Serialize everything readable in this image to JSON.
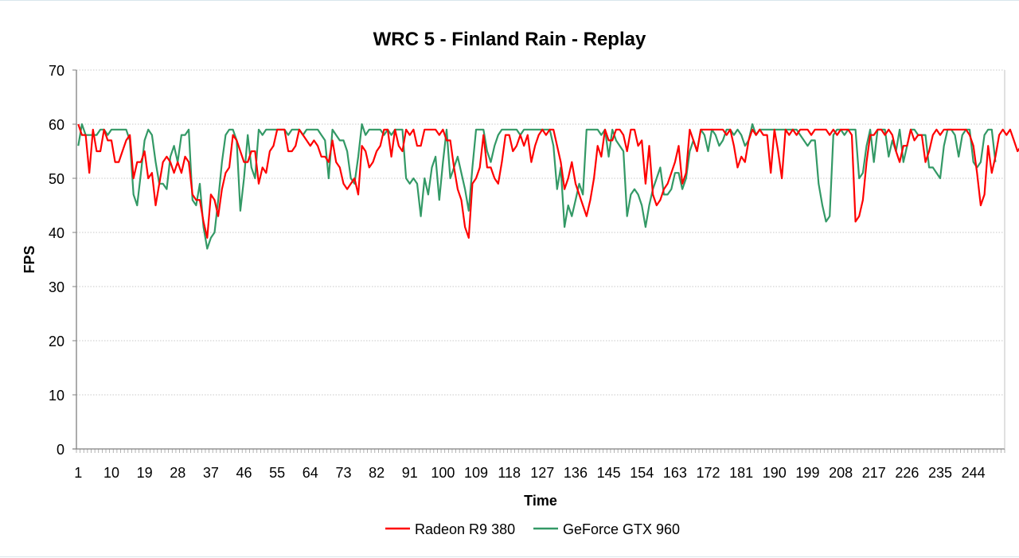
{
  "chart_data": {
    "type": "line",
    "title": "WRC 5 - Finland Rain - Replay",
    "xlabel": "Time",
    "ylabel": "FPS",
    "ylim": [
      0,
      70
    ],
    "yticks": [
      0,
      10,
      20,
      30,
      40,
      50,
      60,
      70
    ],
    "xtick_labels": [
      "1",
      "10",
      "19",
      "28",
      "37",
      "46",
      "55",
      "64",
      "73",
      "82",
      "91",
      "100",
      "109",
      "118",
      "127",
      "136",
      "145",
      "154",
      "163",
      "172",
      "181",
      "190",
      "199",
      "208",
      "217",
      "226",
      "235",
      "244"
    ],
    "x_count": 252,
    "grid": "horizontal-dotted",
    "legend": "bottom",
    "series": [
      {
        "name": "Radeon R9 380",
        "color": "#ff0000",
        "values": [
          60,
          58,
          58,
          51,
          59,
          55,
          55,
          59,
          57,
          57,
          53,
          53,
          55,
          57,
          58,
          50,
          53,
          53,
          55,
          50,
          51,
          45,
          49,
          53,
          54,
          53,
          51,
          53,
          51,
          54,
          53,
          47,
          46,
          46,
          42,
          39,
          47,
          46,
          43,
          48,
          51,
          52,
          58,
          57,
          55,
          53,
          53,
          55,
          55,
          49,
          52,
          51,
          55,
          56,
          59,
          59,
          59,
          55,
          55,
          56,
          59,
          58,
          57,
          56,
          57,
          56,
          54,
          54,
          53,
          57,
          53,
          52,
          49,
          48,
          49,
          50,
          47,
          56,
          55,
          52,
          53,
          55,
          56,
          59,
          59,
          54,
          59,
          56,
          55,
          59,
          58,
          59,
          56,
          56,
          59,
          59,
          59,
          59,
          58,
          59,
          57,
          57,
          52,
          48,
          46,
          41,
          39,
          49,
          50,
          52,
          58,
          52,
          52,
          50,
          49,
          53,
          58,
          58,
          55,
          56,
          58,
          56,
          58,
          53,
          56,
          58,
          59,
          58,
          59,
          59,
          56,
          53,
          48,
          50,
          53,
          49,
          47,
          45,
          43,
          46,
          50,
          56,
          54,
          59,
          57,
          57,
          59,
          59,
          58,
          55,
          59,
          59,
          56,
          57,
          49,
          56,
          47,
          45,
          46,
          48,
          49,
          51,
          53,
          56,
          49,
          51,
          59,
          57,
          55,
          59,
          59,
          59,
          59,
          59,
          59,
          59,
          58,
          59,
          56,
          52,
          54,
          53,
          57,
          59,
          58,
          59,
          58,
          58,
          51,
          59,
          55,
          50,
          59,
          58,
          59,
          58,
          59,
          59,
          59,
          58,
          59,
          59,
          59,
          59,
          58,
          59,
          58,
          59,
          59,
          59,
          58,
          42,
          43,
          46,
          53,
          58,
          58,
          59,
          59,
          58,
          59,
          58,
          55,
          53,
          56,
          56,
          59,
          57,
          58,
          58,
          53,
          55,
          58,
          59,
          58,
          59,
          59,
          59,
          59,
          59,
          59,
          59,
          58,
          56,
          51,
          45,
          47,
          56,
          51,
          54,
          58,
          59,
          58,
          59,
          57,
          55,
          56
        ]
      },
      {
        "name": "GeForce GTX 960",
        "color": "#339966",
        "values": [
          56,
          60,
          58,
          58,
          58,
          58,
          59,
          59,
          58,
          59,
          59,
          59,
          59,
          59,
          57,
          47,
          45,
          51,
          57,
          59,
          58,
          53,
          49,
          49,
          48,
          54,
          56,
          53,
          58,
          58,
          59,
          46,
          45,
          49,
          41,
          37,
          39,
          40,
          46,
          53,
          58,
          59,
          59,
          57,
          44,
          50,
          58,
          52,
          50,
          59,
          58,
          59,
          59,
          59,
          59,
          59,
          59,
          58,
          59,
          59,
          59,
          58,
          59,
          59,
          59,
          59,
          58,
          57,
          50,
          59,
          58,
          57,
          57,
          55,
          50,
          49,
          54,
          60,
          58,
          59,
          59,
          59,
          59,
          58,
          59,
          58,
          59,
          59,
          59,
          50,
          49,
          50,
          49,
          43,
          50,
          47,
          52,
          54,
          46,
          53,
          59,
          50,
          52,
          54,
          51,
          48,
          44,
          52,
          59,
          59,
          59,
          55,
          53,
          56,
          58,
          59,
          59,
          59,
          59,
          59,
          58,
          59,
          59,
          59,
          59,
          59,
          59,
          59,
          59,
          56,
          48,
          52,
          41,
          45,
          43,
          46,
          49,
          47,
          59,
          59,
          59,
          59,
          58,
          59,
          54,
          59,
          57,
          56,
          55,
          43,
          47,
          48,
          47,
          45,
          41,
          45,
          48,
          50,
          52,
          47,
          47,
          48,
          51,
          51,
          48,
          50,
          55,
          57,
          55,
          59,
          58,
          55,
          59,
          58,
          56,
          57,
          59,
          59,
          58,
          59,
          58,
          56,
          57,
          60,
          58,
          59,
          59,
          59,
          59,
          59,
          59,
          59,
          59,
          59,
          59,
          59,
          58,
          57,
          56,
          57,
          57,
          49,
          45,
          42,
          43,
          58,
          59,
          59,
          58,
          59,
          59,
          59,
          50,
          51,
          56,
          59,
          53,
          59,
          59,
          59,
          54,
          57,
          55,
          59,
          53,
          56,
          59,
          59,
          58,
          58,
          58,
          52,
          52,
          51,
          50,
          56,
          59,
          59,
          58,
          54,
          58,
          59,
          59,
          53,
          52,
          53,
          58,
          59,
          59,
          53
        ]
      }
    ]
  }
}
